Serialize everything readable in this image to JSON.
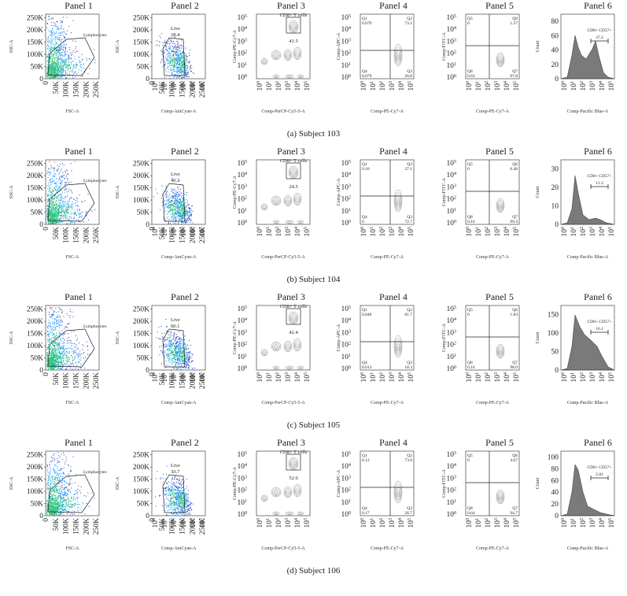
{
  "panel_titles": [
    "Panel 1",
    "Panel 2",
    "Panel 3",
    "Panel 4",
    "Panel 5",
    "Panel 6"
  ],
  "axis_labels": {
    "p1_x": "FSC-A",
    "p1_y": "SSC-A",
    "p2_x": "Comp-AmCyan-A",
    "p2_y": "SSC-A",
    "p3_x": "Comp-PerCP-Cy5-5-A",
    "p3_y": "Comp-PE-Cy7-A",
    "p4_x": "Comp-PE-Cy7-A",
    "p4_y": "Comp-APC-A",
    "p5_x": "Comp-PE-Cy7-A",
    "p5_y": "Comp-FITC-A",
    "p6_x": "Comp-Pacific Blue-A",
    "p6_y": "Count"
  },
  "linear_ticks": [
    "0",
    "50K",
    "100K",
    "150K",
    "200K",
    "250K"
  ],
  "log_ticks_sup": [
    "0",
    "1",
    "2",
    "3",
    "4",
    "5"
  ],
  "gate_labels": {
    "p1": "Lymphocytes",
    "p2": "Live",
    "p3": "CD8+ T cells",
    "p6": "CD8+ CD57+"
  },
  "quadrant_names": {
    "p4": [
      "Q1",
      "Q2",
      "Q3",
      "Q4"
    ],
    "p5": [
      "Q5",
      "Q6",
      "Q7",
      "Q8"
    ]
  },
  "colors": {
    "dot_dense": "#2ecc71",
    "dot_mid": "#1e90ff",
    "dot_sparse": "#1f3fb0",
    "hist_fill": "#7a7a7a"
  },
  "rows": [
    {
      "caption": "(a)  Subject 103",
      "p2_live": "28.4",
      "p3_cd8": "41.5",
      "p4": {
        "q1": "0.079",
        "q2": "73.1",
        "q3": "26.8",
        "q4": "0.079"
      },
      "p5": {
        "q5": "0",
        "q6": "1.57",
        "q7": "97.8",
        "q8": "0.63"
      },
      "p6_cd57": "37.2",
      "p6_ymax_ticks": [
        "0",
        "20",
        "40",
        "60",
        "80"
      ]
    },
    {
      "caption": "(b)  Subject 104",
      "p2_live": "40.3",
      "p3_cd8": "24.5",
      "p4": {
        "q1": "0.16",
        "q2": "27.1",
        "q3": "72.7",
        "q4": "0"
      },
      "p5": {
        "q5": "0",
        "q6": "0.48",
        "q7": "99.4",
        "q8": "0.16"
      },
      "p6_cd57": "11.3",
      "p6_ymax_ticks": [
        "0",
        "10",
        "20",
        "30"
      ]
    },
    {
      "caption": "(c)  Subject 105",
      "p2_live": "63.1",
      "p3_cd8": "42.4",
      "p4": {
        "q1": "0.040",
        "q2": "81.7",
        "q3": "18.3",
        "q4": "0.013"
      },
      "p5": {
        "q5": "0",
        "q6": "1.83",
        "q7": "98.0",
        "q8": "0.16"
      },
      "p6_cd57": "16.1",
      "p6_ymax_ticks": [
        "0",
        "50",
        "100",
        "150"
      ]
    },
    {
      "caption": "(d)  Subject 106",
      "p2_live": "33.7",
      "p3_cd8": "52.6",
      "p4": {
        "q1": "0.12",
        "q2": "73.0",
        "q3": "26.7",
        "q4": "0.17"
      },
      "p5": {
        "q5": "0",
        "q6": "4.67",
        "q7": "94.7",
        "q8": "0.64"
      },
      "p6_cd57": "5.81",
      "p6_ymax_ticks": [
        "0",
        "20",
        "40",
        "60",
        "80",
        "100"
      ]
    }
  ]
}
